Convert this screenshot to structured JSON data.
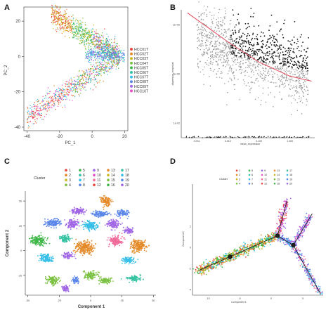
{
  "colors": {
    "red": "#e8483b",
    "orange": "#e48b2a",
    "yellow": "#c9b820",
    "lime": "#7cc242",
    "green": "#3fb649",
    "teal": "#34c2a2",
    "cyan": "#36bfe8",
    "blue": "#5a86e8",
    "purple": "#a065e6",
    "magenta": "#e550c8",
    "pink": "#f06a9a",
    "dark": "#1a1a1a",
    "grey": "#9a9a9a",
    "fit": "#e0485a"
  },
  "chart_data": [
    {
      "panel": "A",
      "type": "scatter",
      "xlabel": "PC_1",
      "ylabel": "PC_2",
      "x_ticks": [
        "-40",
        "-20",
        "0",
        "20"
      ],
      "y_ticks": [
        "20",
        "0",
        "-20",
        "-40"
      ],
      "xlim": [
        -42,
        22
      ],
      "ylim": [
        -42,
        28
      ],
      "legend": [
        "HCC01T",
        "HCC02T",
        "HCC03T",
        "HCC04T",
        "HCC05T",
        "HCC06T",
        "HCC07T",
        "HCC08T",
        "HCC09T",
        "HCC10T"
      ],
      "legend_position": "right",
      "clusters": [
        {
          "x_range": [
            -25,
            17
          ],
          "y_trend": [
            24,
            0
          ],
          "note": "upper arm"
        },
        {
          "x_range": [
            -40,
            17
          ],
          "y_trend": [
            -34,
            0
          ],
          "note": "lower arm"
        },
        {
          "x_range": [
            -5,
            20
          ],
          "y_trend": [
            3,
            0
          ],
          "note": "right tip"
        }
      ]
    },
    {
      "panel": "B",
      "type": "scatter",
      "xlabel": "mean_expression",
      "ylabel": "dispersion_empirical",
      "x_ticks": [
        "0.001",
        "0.010",
        "0.100",
        "1.000"
      ],
      "y_ticks": [
        "1e+02",
        "1e+00",
        "1e-02"
      ],
      "x_scale": "log",
      "y_scale": "log",
      "point_groups": [
        "selected (black)",
        "other (grey)"
      ],
      "fit_line": {
        "x": [
          0.0005,
          0.01,
          0.1,
          1,
          5
        ],
        "y": [
          300,
          20,
          3,
          0.8,
          0.5
        ]
      }
    },
    {
      "panel": "C",
      "type": "scatter",
      "xlabel": "Component 1",
      "ylabel": "Component 2",
      "x_ticks": [
        "-50",
        "-25",
        "0",
        "25",
        "50"
      ],
      "y_ticks": [
        "50",
        "25",
        "0",
        "-25"
      ],
      "xlim": [
        -52,
        52
      ],
      "ylim": [
        -45,
        60
      ],
      "legend_title": "Cluster",
      "legend": [
        "1",
        "2",
        "3",
        "4",
        "5",
        "6",
        "7",
        "8",
        "9",
        "10",
        "11",
        "12",
        "13",
        "14",
        "15",
        "16",
        "17",
        "18",
        "19",
        "20"
      ]
    },
    {
      "panel": "D",
      "type": "scatter",
      "xlabel": "Component 1",
      "ylabel": "Component 2",
      "x_ticks": [
        "-10",
        "-5",
        "0",
        "5"
      ],
      "y_ticks": [
        "2",
        "0",
        "-2",
        "-4"
      ],
      "legend_title": "Cluster",
      "legend": [
        "1",
        "2",
        "3",
        "4",
        "5",
        "6",
        "7",
        "8",
        "9",
        "10",
        "11",
        "12",
        "13",
        "14",
        "15",
        "16",
        "17",
        "18",
        "19",
        "20"
      ],
      "branch_points": [
        "1",
        "2",
        "3"
      ]
    }
  ]
}
